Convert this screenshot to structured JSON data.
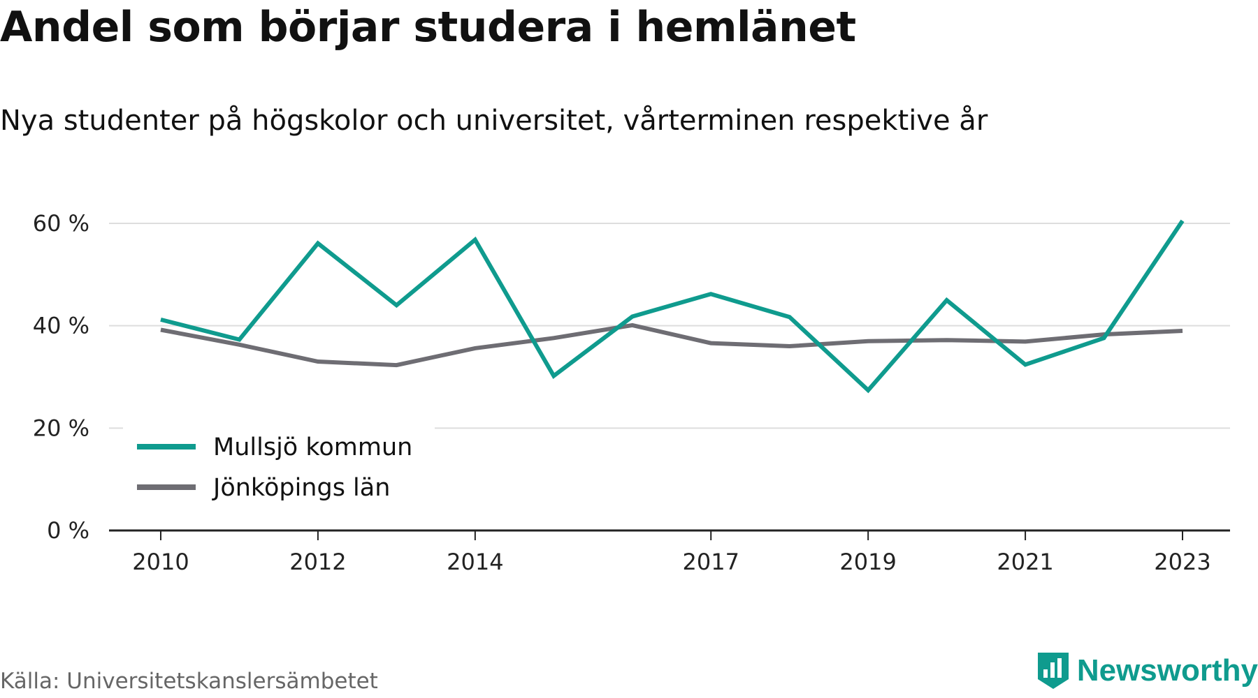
{
  "header": {
    "title": "Andel som börjar studera i hemlänet",
    "subtitle": "Nya studenter på högskolor och universitet, vårterminen respektive år"
  },
  "footer": {
    "source": "Källa: Universitetskanslersämbetet",
    "brand": "Newsworthy",
    "brand_icon": "bar-chart-logo-icon"
  },
  "colors": {
    "accent": "#0f9b8e",
    "secondary": "#6e6d73",
    "grid": "#dddddd",
    "axis": "#222222"
  },
  "chart_data": {
    "type": "line",
    "title": "Andel som börjar studera i hemlänet",
    "subtitle": "Nya studenter på högskolor och universitet, vårterminen respektive år",
    "x": [
      2010,
      2011,
      2012,
      2013,
      2014,
      2015,
      2016,
      2017,
      2018,
      2019,
      2020,
      2021,
      2022,
      2023
    ],
    "x_tick_labels": [
      "2010",
      "2012",
      "2014",
      "2017",
      "2019",
      "2021",
      "2023"
    ],
    "ylim": [
      0,
      60
    ],
    "y_tick_labels": [
      "0 %",
      "20 %",
      "40 %",
      "60 %"
    ],
    "y_tick_values": [
      0,
      20,
      40,
      60
    ],
    "grid": true,
    "legend_position": "bottom-left",
    "series": [
      {
        "name": "Mullsjö kommun",
        "color": "#0f9b8e",
        "values": [
          41.2,
          37.3,
          56.1,
          44.0,
          56.8,
          30.2,
          41.8,
          46.2,
          41.7,
          27.4,
          45.0,
          32.4,
          37.6,
          60.5
        ]
      },
      {
        "name": "Jönköpings län",
        "color": "#6e6d73",
        "values": [
          39.2,
          36.3,
          33.0,
          32.3,
          35.6,
          37.6,
          40.1,
          36.6,
          36.0,
          37.0,
          37.2,
          36.9,
          38.3,
          39.0
        ]
      }
    ]
  }
}
